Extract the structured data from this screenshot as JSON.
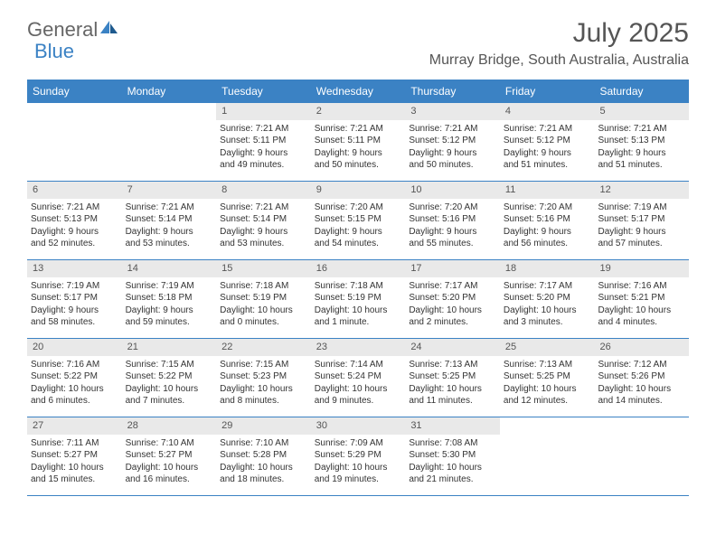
{
  "brand": {
    "general": "General",
    "blue": "Blue"
  },
  "title": "July 2025",
  "location": "Murray Bridge, South Australia, Australia",
  "colors": {
    "accent": "#3b82c4",
    "header_bg": "#e9e9e9",
    "text_dark": "#333333",
    "text_mid": "#555555",
    "background": "#ffffff"
  },
  "day_names": [
    "Sunday",
    "Monday",
    "Tuesday",
    "Wednesday",
    "Thursday",
    "Friday",
    "Saturday"
  ],
  "weeks": [
    [
      {
        "empty": true
      },
      {
        "empty": true
      },
      {
        "num": "1",
        "sunrise": "Sunrise: 7:21 AM",
        "sunset": "Sunset: 5:11 PM",
        "day1": "Daylight: 9 hours",
        "day2": "and 49 minutes."
      },
      {
        "num": "2",
        "sunrise": "Sunrise: 7:21 AM",
        "sunset": "Sunset: 5:11 PM",
        "day1": "Daylight: 9 hours",
        "day2": "and 50 minutes."
      },
      {
        "num": "3",
        "sunrise": "Sunrise: 7:21 AM",
        "sunset": "Sunset: 5:12 PM",
        "day1": "Daylight: 9 hours",
        "day2": "and 50 minutes."
      },
      {
        "num": "4",
        "sunrise": "Sunrise: 7:21 AM",
        "sunset": "Sunset: 5:12 PM",
        "day1": "Daylight: 9 hours",
        "day2": "and 51 minutes."
      },
      {
        "num": "5",
        "sunrise": "Sunrise: 7:21 AM",
        "sunset": "Sunset: 5:13 PM",
        "day1": "Daylight: 9 hours",
        "day2": "and 51 minutes."
      }
    ],
    [
      {
        "num": "6",
        "sunrise": "Sunrise: 7:21 AM",
        "sunset": "Sunset: 5:13 PM",
        "day1": "Daylight: 9 hours",
        "day2": "and 52 minutes."
      },
      {
        "num": "7",
        "sunrise": "Sunrise: 7:21 AM",
        "sunset": "Sunset: 5:14 PM",
        "day1": "Daylight: 9 hours",
        "day2": "and 53 minutes."
      },
      {
        "num": "8",
        "sunrise": "Sunrise: 7:21 AM",
        "sunset": "Sunset: 5:14 PM",
        "day1": "Daylight: 9 hours",
        "day2": "and 53 minutes."
      },
      {
        "num": "9",
        "sunrise": "Sunrise: 7:20 AM",
        "sunset": "Sunset: 5:15 PM",
        "day1": "Daylight: 9 hours",
        "day2": "and 54 minutes."
      },
      {
        "num": "10",
        "sunrise": "Sunrise: 7:20 AM",
        "sunset": "Sunset: 5:16 PM",
        "day1": "Daylight: 9 hours",
        "day2": "and 55 minutes."
      },
      {
        "num": "11",
        "sunrise": "Sunrise: 7:20 AM",
        "sunset": "Sunset: 5:16 PM",
        "day1": "Daylight: 9 hours",
        "day2": "and 56 minutes."
      },
      {
        "num": "12",
        "sunrise": "Sunrise: 7:19 AM",
        "sunset": "Sunset: 5:17 PM",
        "day1": "Daylight: 9 hours",
        "day2": "and 57 minutes."
      }
    ],
    [
      {
        "num": "13",
        "sunrise": "Sunrise: 7:19 AM",
        "sunset": "Sunset: 5:17 PM",
        "day1": "Daylight: 9 hours",
        "day2": "and 58 minutes."
      },
      {
        "num": "14",
        "sunrise": "Sunrise: 7:19 AM",
        "sunset": "Sunset: 5:18 PM",
        "day1": "Daylight: 9 hours",
        "day2": "and 59 minutes."
      },
      {
        "num": "15",
        "sunrise": "Sunrise: 7:18 AM",
        "sunset": "Sunset: 5:19 PM",
        "day1": "Daylight: 10 hours",
        "day2": "and 0 minutes."
      },
      {
        "num": "16",
        "sunrise": "Sunrise: 7:18 AM",
        "sunset": "Sunset: 5:19 PM",
        "day1": "Daylight: 10 hours",
        "day2": "and 1 minute."
      },
      {
        "num": "17",
        "sunrise": "Sunrise: 7:17 AM",
        "sunset": "Sunset: 5:20 PM",
        "day1": "Daylight: 10 hours",
        "day2": "and 2 minutes."
      },
      {
        "num": "18",
        "sunrise": "Sunrise: 7:17 AM",
        "sunset": "Sunset: 5:20 PM",
        "day1": "Daylight: 10 hours",
        "day2": "and 3 minutes."
      },
      {
        "num": "19",
        "sunrise": "Sunrise: 7:16 AM",
        "sunset": "Sunset: 5:21 PM",
        "day1": "Daylight: 10 hours",
        "day2": "and 4 minutes."
      }
    ],
    [
      {
        "num": "20",
        "sunrise": "Sunrise: 7:16 AM",
        "sunset": "Sunset: 5:22 PM",
        "day1": "Daylight: 10 hours",
        "day2": "and 6 minutes."
      },
      {
        "num": "21",
        "sunrise": "Sunrise: 7:15 AM",
        "sunset": "Sunset: 5:22 PM",
        "day1": "Daylight: 10 hours",
        "day2": "and 7 minutes."
      },
      {
        "num": "22",
        "sunrise": "Sunrise: 7:15 AM",
        "sunset": "Sunset: 5:23 PM",
        "day1": "Daylight: 10 hours",
        "day2": "and 8 minutes."
      },
      {
        "num": "23",
        "sunrise": "Sunrise: 7:14 AM",
        "sunset": "Sunset: 5:24 PM",
        "day1": "Daylight: 10 hours",
        "day2": "and 9 minutes."
      },
      {
        "num": "24",
        "sunrise": "Sunrise: 7:13 AM",
        "sunset": "Sunset: 5:25 PM",
        "day1": "Daylight: 10 hours",
        "day2": "and 11 minutes."
      },
      {
        "num": "25",
        "sunrise": "Sunrise: 7:13 AM",
        "sunset": "Sunset: 5:25 PM",
        "day1": "Daylight: 10 hours",
        "day2": "and 12 minutes."
      },
      {
        "num": "26",
        "sunrise": "Sunrise: 7:12 AM",
        "sunset": "Sunset: 5:26 PM",
        "day1": "Daylight: 10 hours",
        "day2": "and 14 minutes."
      }
    ],
    [
      {
        "num": "27",
        "sunrise": "Sunrise: 7:11 AM",
        "sunset": "Sunset: 5:27 PM",
        "day1": "Daylight: 10 hours",
        "day2": "and 15 minutes."
      },
      {
        "num": "28",
        "sunrise": "Sunrise: 7:10 AM",
        "sunset": "Sunset: 5:27 PM",
        "day1": "Daylight: 10 hours",
        "day2": "and 16 minutes."
      },
      {
        "num": "29",
        "sunrise": "Sunrise: 7:10 AM",
        "sunset": "Sunset: 5:28 PM",
        "day1": "Daylight: 10 hours",
        "day2": "and 18 minutes."
      },
      {
        "num": "30",
        "sunrise": "Sunrise: 7:09 AM",
        "sunset": "Sunset: 5:29 PM",
        "day1": "Daylight: 10 hours",
        "day2": "and 19 minutes."
      },
      {
        "num": "31",
        "sunrise": "Sunrise: 7:08 AM",
        "sunset": "Sunset: 5:30 PM",
        "day1": "Daylight: 10 hours",
        "day2": "and 21 minutes."
      },
      {
        "empty": true
      },
      {
        "empty": true
      }
    ]
  ]
}
